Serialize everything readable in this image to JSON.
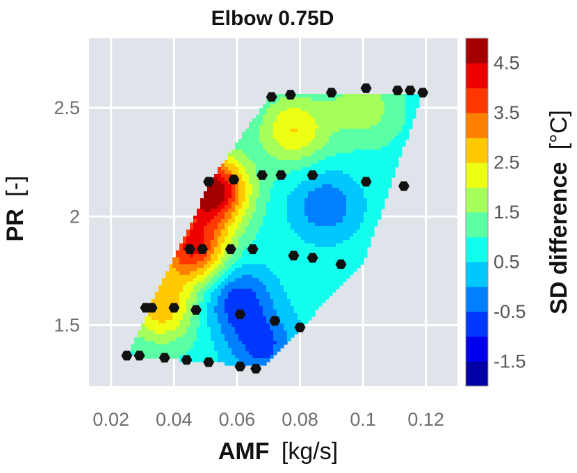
{
  "chart_data": {
    "type": "contour",
    "title": "Elbow 0.75D",
    "xlabel_main": "AMF",
    "xlabel_unit": "[kg/s]",
    "ylabel_main": "PR",
    "ylabel_unit": "[-]",
    "colorbar_label_main": "SD difference",
    "colorbar_label_unit": "[°C]",
    "xlim": [
      0.013,
      0.13
    ],
    "ylim": [
      1.22,
      2.82
    ],
    "xticks": [
      "0.02",
      "0.04",
      "0.06",
      "0.08",
      "0.1",
      "0.12"
    ],
    "xtick_values": [
      0.02,
      0.04,
      0.06,
      0.08,
      0.1,
      0.12
    ],
    "yticks": [
      "1.5",
      "2",
      "2.5"
    ],
    "ytick_values": [
      1.5,
      2.0,
      2.5
    ],
    "colorbar_range": [
      -2.0,
      5.0
    ],
    "colorbar_ticks": [
      "4.5",
      "3.5",
      "2.5",
      "1.5",
      "0.5",
      "-0.5",
      "-1.5"
    ],
    "colorbar_tick_values": [
      4.5,
      3.5,
      2.5,
      1.5,
      0.5,
      -0.5,
      -1.5
    ],
    "colormap": "jet",
    "grid": true,
    "plot_background": "#dfe3ea",
    "marker_color": "#111111",
    "region_polygon": [
      {
        "x": 0.025,
        "y": 1.36
      },
      {
        "x": 0.068,
        "y": 1.31
      },
      {
        "x": 0.1,
        "y": 1.78
      },
      {
        "x": 0.119,
        "y": 2.57
      },
      {
        "x": 0.071,
        "y": 2.57
      },
      {
        "x": 0.052,
        "y": 2.17
      }
    ],
    "points": [
      {
        "x": 0.025,
        "y": 1.36
      },
      {
        "x": 0.029,
        "y": 1.36
      },
      {
        "x": 0.037,
        "y": 1.35
      },
      {
        "x": 0.044,
        "y": 1.34
      },
      {
        "x": 0.051,
        "y": 1.33
      },
      {
        "x": 0.061,
        "y": 1.31
      },
      {
        "x": 0.066,
        "y": 1.3
      },
      {
        "x": 0.031,
        "y": 1.58
      },
      {
        "x": 0.033,
        "y": 1.58
      },
      {
        "x": 0.04,
        "y": 1.58
      },
      {
        "x": 0.047,
        "y": 1.57
      },
      {
        "x": 0.061,
        "y": 1.55
      },
      {
        "x": 0.072,
        "y": 1.52
      },
      {
        "x": 0.08,
        "y": 1.49
      },
      {
        "x": 0.045,
        "y": 1.85
      },
      {
        "x": 0.049,
        "y": 1.85
      },
      {
        "x": 0.058,
        "y": 1.85
      },
      {
        "x": 0.065,
        "y": 1.85
      },
      {
        "x": 0.078,
        "y": 1.82
      },
      {
        "x": 0.084,
        "y": 1.81
      },
      {
        "x": 0.093,
        "y": 1.78
      },
      {
        "x": 0.051,
        "y": 2.16
      },
      {
        "x": 0.059,
        "y": 2.17
      },
      {
        "x": 0.068,
        "y": 2.19
      },
      {
        "x": 0.074,
        "y": 2.19
      },
      {
        "x": 0.084,
        "y": 2.19
      },
      {
        "x": 0.101,
        "y": 2.16
      },
      {
        "x": 0.113,
        "y": 2.14
      },
      {
        "x": 0.071,
        "y": 2.55
      },
      {
        "x": 0.077,
        "y": 2.56
      },
      {
        "x": 0.09,
        "y": 2.57
      },
      {
        "x": 0.101,
        "y": 2.59
      },
      {
        "x": 0.111,
        "y": 2.58
      },
      {
        "x": 0.115,
        "y": 2.58
      },
      {
        "x": 0.119,
        "y": 2.57
      }
    ],
    "field_peaks": [
      {
        "x": 0.052,
        "y": 2.12,
        "value": 5.0
      },
      {
        "x": 0.046,
        "y": 1.85,
        "value": 4.0
      },
      {
        "x": 0.036,
        "y": 1.58,
        "value": 2.8
      },
      {
        "x": 0.078,
        "y": 2.4,
        "value": 2.5
      },
      {
        "x": 0.1,
        "y": 2.5,
        "value": 1.8
      },
      {
        "x": 0.06,
        "y": 1.62,
        "value": -0.8
      },
      {
        "x": 0.088,
        "y": 2.05,
        "value": -0.4
      },
      {
        "x": 0.068,
        "y": 1.4,
        "value": -0.6
      }
    ],
    "field_base": 0.8
  }
}
